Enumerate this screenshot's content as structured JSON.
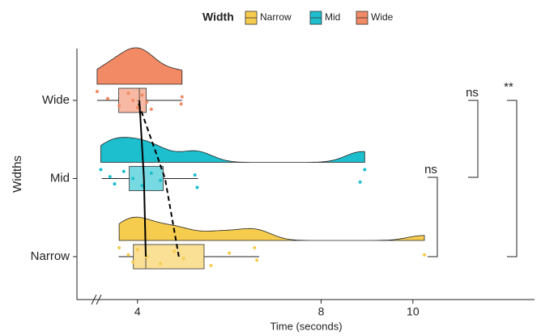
{
  "chart_data": {
    "type": "raincloud",
    "legend_title": "Width",
    "x_label": "Time (seconds)",
    "y_label": "Widths",
    "categories": [
      "Narrow",
      "Mid",
      "Wide"
    ],
    "xlim": [
      2.68,
      12.65
    ],
    "xticks": [
      4,
      8,
      10
    ],
    "series": [
      {
        "name": "Narrow",
        "color": "#F6CC4E",
        "points": [
          3.6,
          3.8,
          3.9,
          4.0,
          4.2,
          4.5,
          4.8,
          5.0,
          5.6,
          6.0,
          6.6,
          6.55,
          10.25
        ],
        "box": {
          "min": 3.59,
          "q1": 3.91,
          "median": 4.18,
          "q3": 5.45,
          "max": 6.65
        },
        "mean": 4.9
      },
      {
        "name": "Mid",
        "color": "#1DBFCE",
        "points": [
          3.2,
          3.4,
          3.5,
          3.7,
          3.9,
          4.1,
          4.3,
          4.5,
          5.3,
          5.25,
          8.85,
          8.95
        ],
        "box": {
          "min": 3.22,
          "q1": 3.82,
          "median": 4.14,
          "q3": 4.56,
          "max": 5.32
        },
        "mean": 4.6
      },
      {
        "name": "Wide",
        "color": "#F28A65",
        "points": [
          3.12,
          3.35,
          3.6,
          3.8,
          3.9,
          4.0,
          4.1,
          4.2,
          4.3,
          4.97,
          4.95
        ],
        "box": {
          "min": 3.12,
          "q1": 3.59,
          "median": 4.04,
          "q3": 4.19,
          "max": 4.97
        },
        "mean": 4.0
      }
    ],
    "comparisons": [
      {
        "label": "ns"
      },
      {
        "label": "ns"
      },
      {
        "label": "**"
      }
    ]
  }
}
